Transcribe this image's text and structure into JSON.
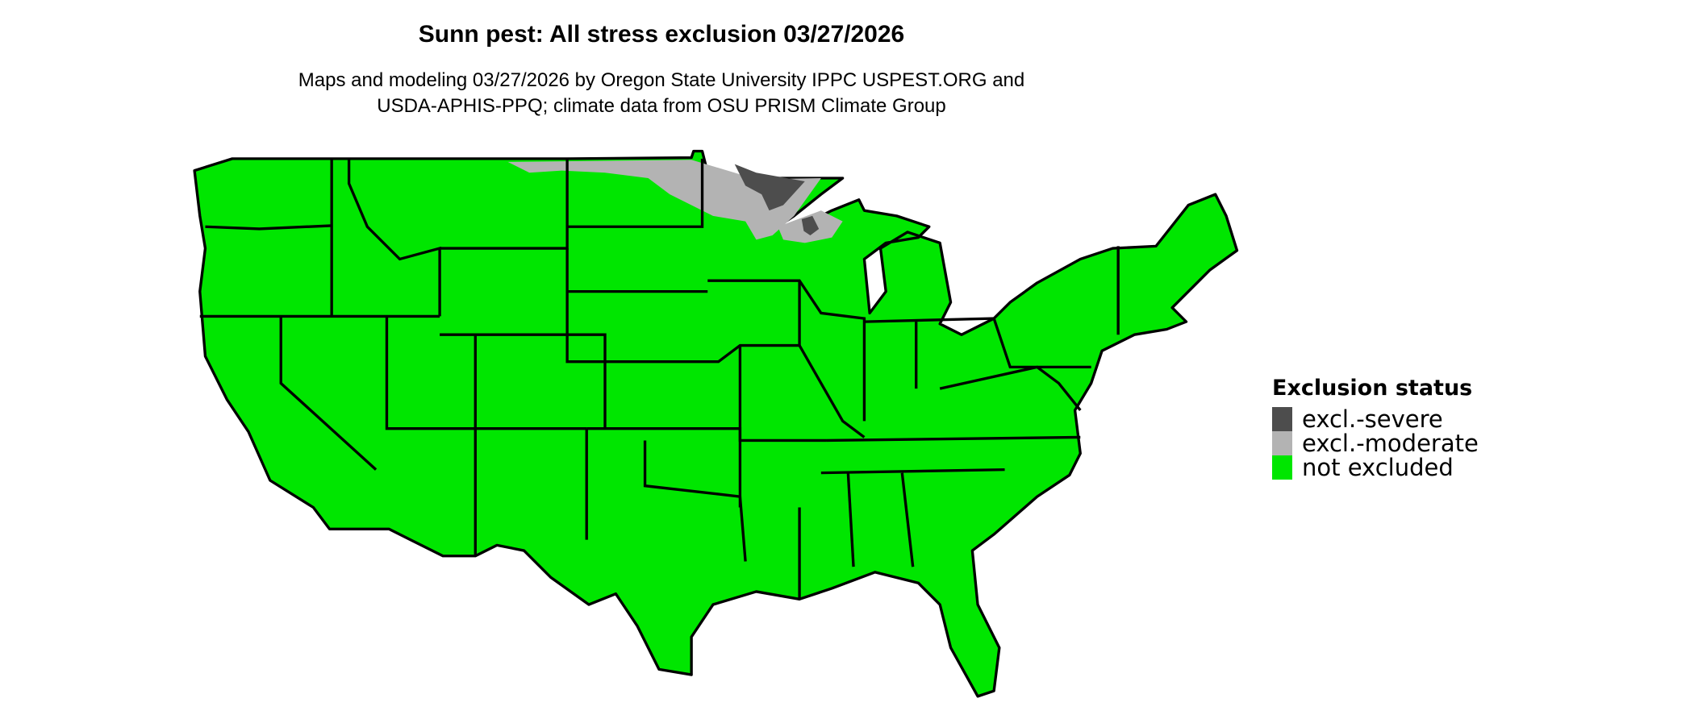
{
  "title": "Sunn pest: All stress exclusion 03/27/2026",
  "subtitle": [
    "Maps and modeling 03/27/2026 by Oregon State University IPPC USPEST.ORG and",
    "USDA-APHIS-PPQ; climate data from OSU PRISM Climate Group"
  ],
  "legend": {
    "title": "Exclusion status",
    "items": [
      {
        "label": "excl.-severe",
        "color": "#4d4d4d"
      },
      {
        "label": "excl.-moderate",
        "color": "#b3b3b3"
      },
      {
        "label": "not excluded",
        "color": "#00e600"
      }
    ]
  },
  "map": {
    "region": "Contiguous United States",
    "dominant_status": "not excluded",
    "excluded_areas": [
      {
        "area": "northern Minnesota / Arrowhead",
        "status": "excl.-severe"
      },
      {
        "area": "northern Minnesota, northeastern North Dakota, northern Wisconsin",
        "status": "excl.-moderate"
      },
      {
        "area": "north-central Wisconsin",
        "status": "excl.-severe"
      }
    ]
  }
}
